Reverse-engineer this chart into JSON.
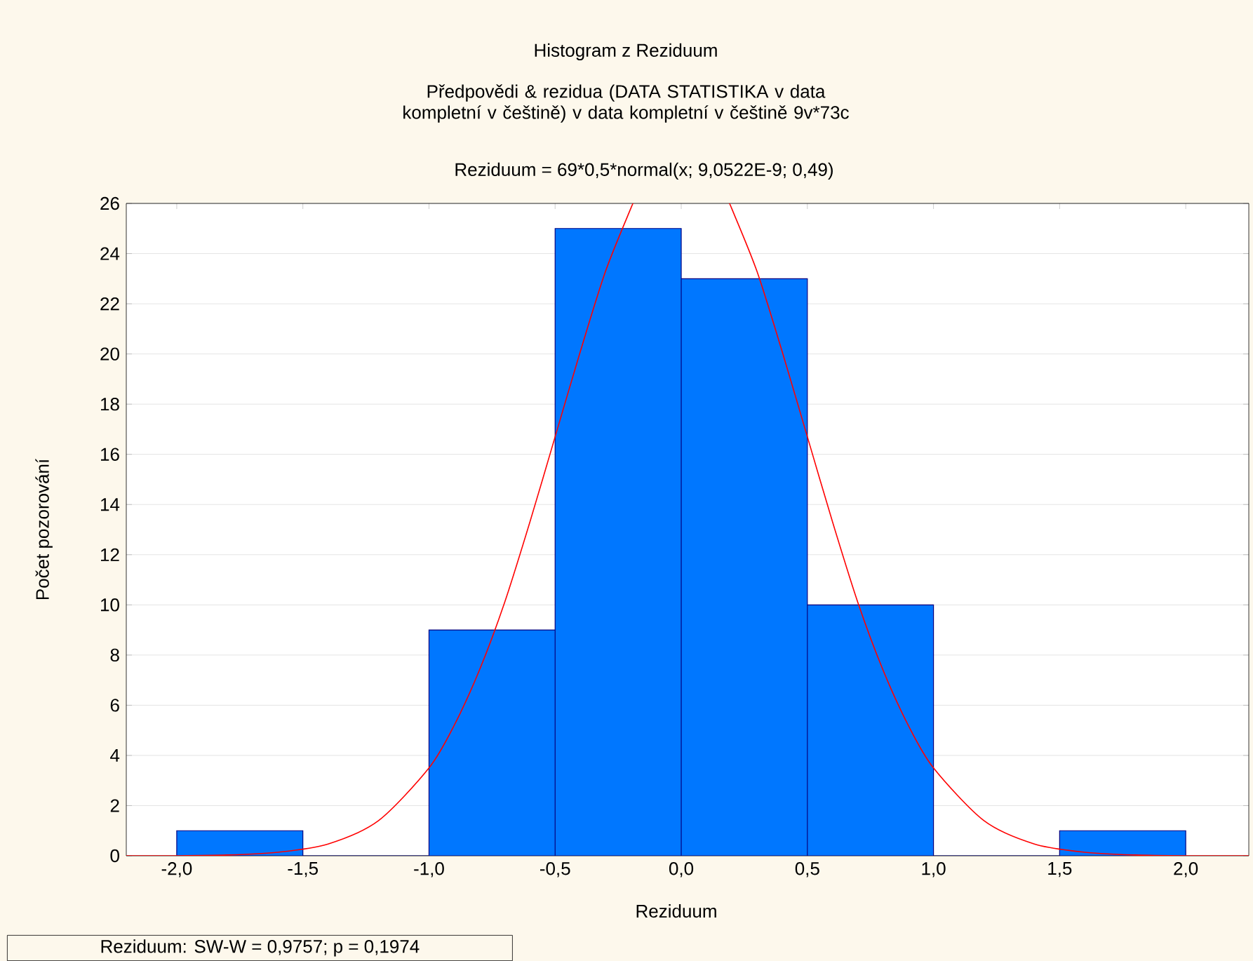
{
  "chart_data": {
    "type": "histogram",
    "title": "Histogram z Reziduum",
    "subtitle": "Předpovědi & rezidua (DATA STATISTIKA v data kompletní v češtině) v data kompletní v češtině 9v*73c",
    "xlabel": "Reziduum",
    "ylabel": "Počet pozorování",
    "annotations": [
      "Reziduum = 69*0,5*normal(x; 9,0522E-9; 0,49)",
      "Reziduum:   SW-W = 0,9757; p = 0,1974"
    ],
    "bins": [
      -2.0,
      -1.5,
      -1.0,
      -0.5,
      0.0,
      0.5,
      1.0,
      1.5,
      2.0
    ],
    "values": [
      1,
      0,
      9,
      25,
      23,
      10,
      0,
      1
    ],
    "color": "#0077ff",
    "series": [
      {
        "type": "line",
        "color": "#ff0000",
        "x": [
          -2.2,
          -2.0,
          -1.8,
          -1.6,
          -1.4,
          -1.2,
          -1.0,
          -0.9,
          -0.8,
          -0.7,
          -0.6,
          -0.5,
          -0.4,
          -0.3,
          -0.2,
          -0.19,
          0.0,
          0.19,
          0.2,
          0.3,
          0.4,
          0.5,
          0.6,
          0.7,
          0.8,
          0.9,
          1.0,
          1.2,
          1.4,
          1.6,
          1.8,
          2.0,
          2.25
        ],
        "values": [
          0.0,
          0.0,
          0.03,
          0.14,
          0.47,
          1.4,
          3.5,
          5.2,
          7.4,
          10.1,
          13.3,
          16.7,
          20.1,
          23.3,
          25.8,
          26.0,
          null,
          26.0,
          25.8,
          23.3,
          20.1,
          16.7,
          13.3,
          10.1,
          7.4,
          5.2,
          3.5,
          1.4,
          0.47,
          0.14,
          0.03,
          0.0,
          0.0
        ]
      }
    ],
    "xlim": [
      -2.2,
      2.25
    ],
    "ylim": [
      0,
      26
    ],
    "xticks": [
      {
        "value": -2.0,
        "label": "-2,0"
      },
      {
        "value": -1.5,
        "label": "-1,5"
      },
      {
        "value": -1.0,
        "label": "-1,0"
      },
      {
        "value": -0.5,
        "label": "-0,5"
      },
      {
        "value": 0.0,
        "label": "0,0"
      },
      {
        "value": 0.5,
        "label": "0,5"
      },
      {
        "value": 1.0,
        "label": "1,0"
      },
      {
        "value": 1.5,
        "label": "1,5"
      },
      {
        "value": 2.0,
        "label": "2,0"
      }
    ],
    "yticks": [
      0,
      2,
      4,
      6,
      8,
      10,
      12,
      14,
      16,
      18,
      20,
      22,
      24,
      26
    ],
    "grid": "y"
  }
}
